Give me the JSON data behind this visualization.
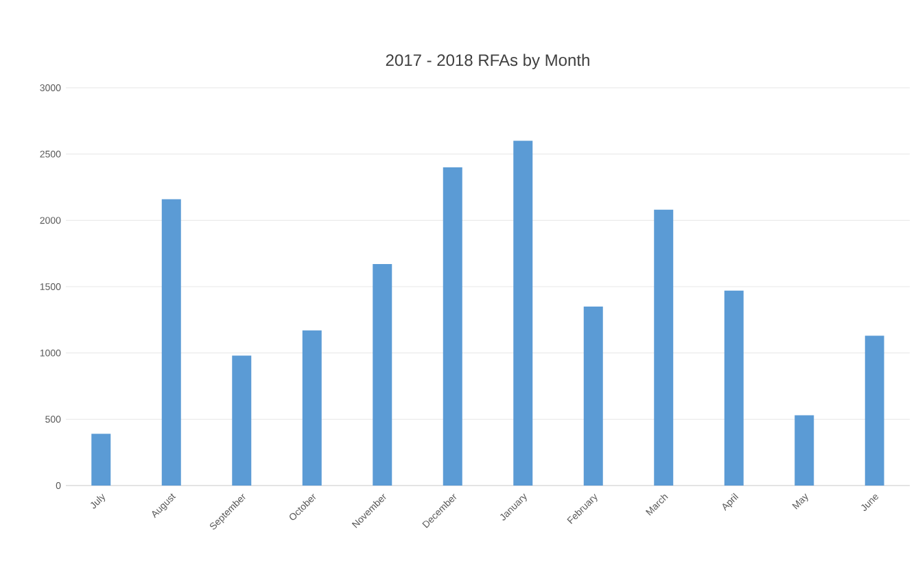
{
  "chart_data": {
    "type": "bar",
    "title": "2017 - 2018 RFAs by Month",
    "categories": [
      "July",
      "August",
      "September",
      "October",
      "November",
      "December",
      "January",
      "February",
      "March",
      "April",
      "May",
      "June"
    ],
    "values": [
      390,
      2160,
      980,
      1170,
      1670,
      2400,
      2600,
      1350,
      2080,
      1470,
      530,
      1130
    ],
    "color": "#5b9bd5",
    "ylim": [
      0,
      3000
    ],
    "yticks": [
      0,
      500,
      1000,
      1500,
      2000,
      2500,
      3000
    ],
    "grid": "y"
  }
}
